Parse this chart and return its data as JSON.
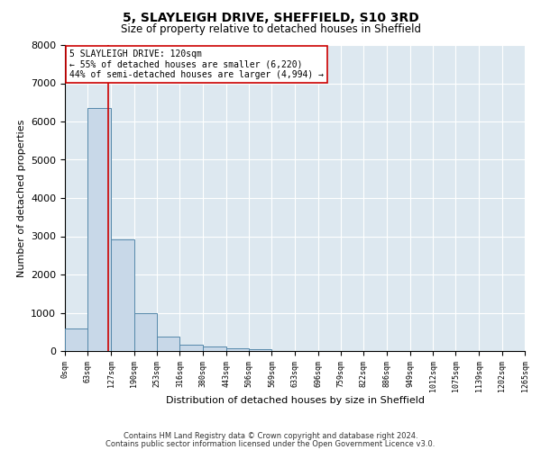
{
  "title": "5, SLAYLEIGH DRIVE, SHEFFIELD, S10 3RD",
  "subtitle": "Size of property relative to detached houses in Sheffield",
  "xlabel": "Distribution of detached houses by size in Sheffield",
  "ylabel": "Number of detached properties",
  "bar_color": "#c8d8e8",
  "bar_edge_color": "#5588aa",
  "background_color": "#dde8f0",
  "grid_color": "#ffffff",
  "property_line_x": 120,
  "property_line_color": "#cc0000",
  "annotation_line1": "5 SLAYLEIGH DRIVE: 120sqm",
  "annotation_line2": "← 55% of detached houses are smaller (6,220)",
  "annotation_line3": "44% of semi-detached houses are larger (4,994) →",
  "annotation_box_color": "#ffffff",
  "annotation_box_edge_color": "#cc0000",
  "ylim": [
    0,
    8000
  ],
  "bin_edges": [
    0,
    63,
    127,
    190,
    253,
    316,
    380,
    443,
    506,
    569,
    633,
    696,
    759,
    822,
    886,
    949,
    1012,
    1075,
    1139,
    1202,
    1265
  ],
  "bin_values": [
    580,
    6350,
    2920,
    990,
    380,
    175,
    120,
    70,
    55,
    0,
    0,
    0,
    0,
    0,
    0,
    0,
    0,
    0,
    0,
    0
  ],
  "tick_labels": [
    "0sqm",
    "63sqm",
    "127sqm",
    "190sqm",
    "253sqm",
    "316sqm",
    "380sqm",
    "443sqm",
    "506sqm",
    "569sqm",
    "633sqm",
    "696sqm",
    "759sqm",
    "822sqm",
    "886sqm",
    "949sqm",
    "1012sqm",
    "1075sqm",
    "1139sqm",
    "1202sqm",
    "1265sqm"
  ],
  "footnote1": "Contains HM Land Registry data © Crown copyright and database right 2024.",
  "footnote2": "Contains public sector information licensed under the Open Government Licence v3.0.",
  "fig_width": 6.0,
  "fig_height": 5.0,
  "dpi": 100
}
